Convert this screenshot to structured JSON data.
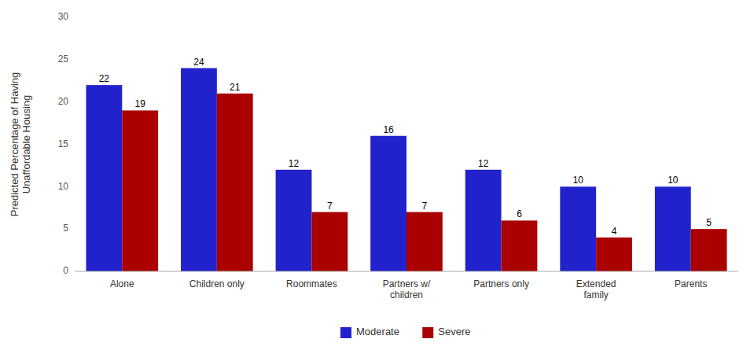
{
  "chart_data": {
    "type": "bar",
    "categories": [
      "Alone",
      "Children only",
      "Roommates",
      "Partners w/\nchildren",
      "Partners only",
      "Extended\nfamily",
      "Parents"
    ],
    "series": [
      {
        "name": "Moderate",
        "color": "#2222CC",
        "values": [
          22,
          24,
          12,
          16,
          12,
          10,
          10
        ]
      },
      {
        "name": "Severe",
        "color": "#AA0000",
        "values": [
          19,
          21,
          7,
          7,
          6,
          4,
          5
        ]
      }
    ],
    "y_label": "Predicted Percentage of Having\nUnaffordable Housing",
    "ylim": [
      0,
      30
    ],
    "yticks": [
      0,
      5,
      10,
      15,
      20,
      25,
      30
    ],
    "grid": false,
    "legend": "bottom",
    "data_labels": true
  }
}
